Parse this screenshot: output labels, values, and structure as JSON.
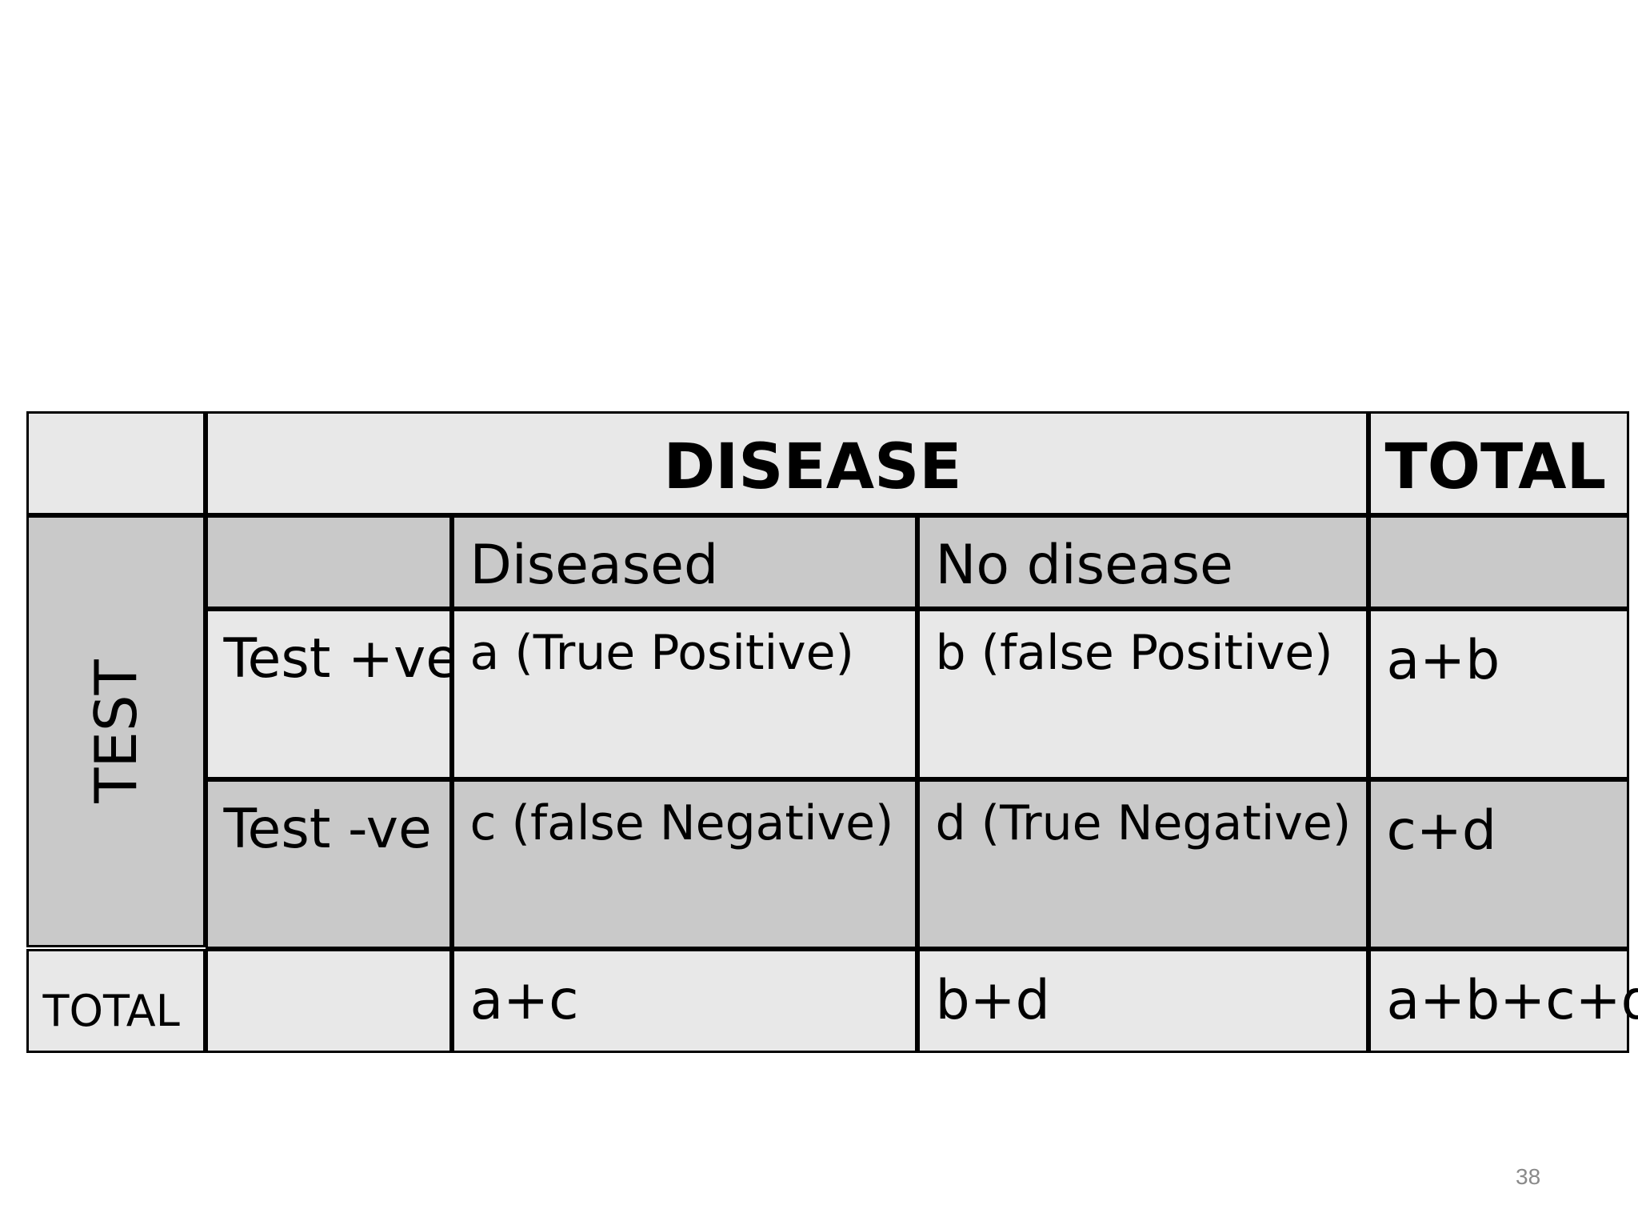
{
  "table": {
    "header": {
      "disease": "DISEASE",
      "total": "TOTAL"
    },
    "subheader": {
      "diseased": "Diseased",
      "no_disease": "No disease"
    },
    "row_group_label": "TEST",
    "rows": [
      {
        "label": "Test +ve",
        "diseased": "a (True Positive)",
        "no_disease": "b (false Positive)",
        "total": "a+b"
      },
      {
        "label": "Test -ve",
        "diseased": "c (false Negative)",
        "no_disease": "d (True Negative)",
        "total": "c+d"
      }
    ],
    "total_row": {
      "label": "TOTAL",
      "diseased": "a+c",
      "no_disease": "b+d",
      "total": "a+b+c+d"
    }
  },
  "page_number": "38"
}
